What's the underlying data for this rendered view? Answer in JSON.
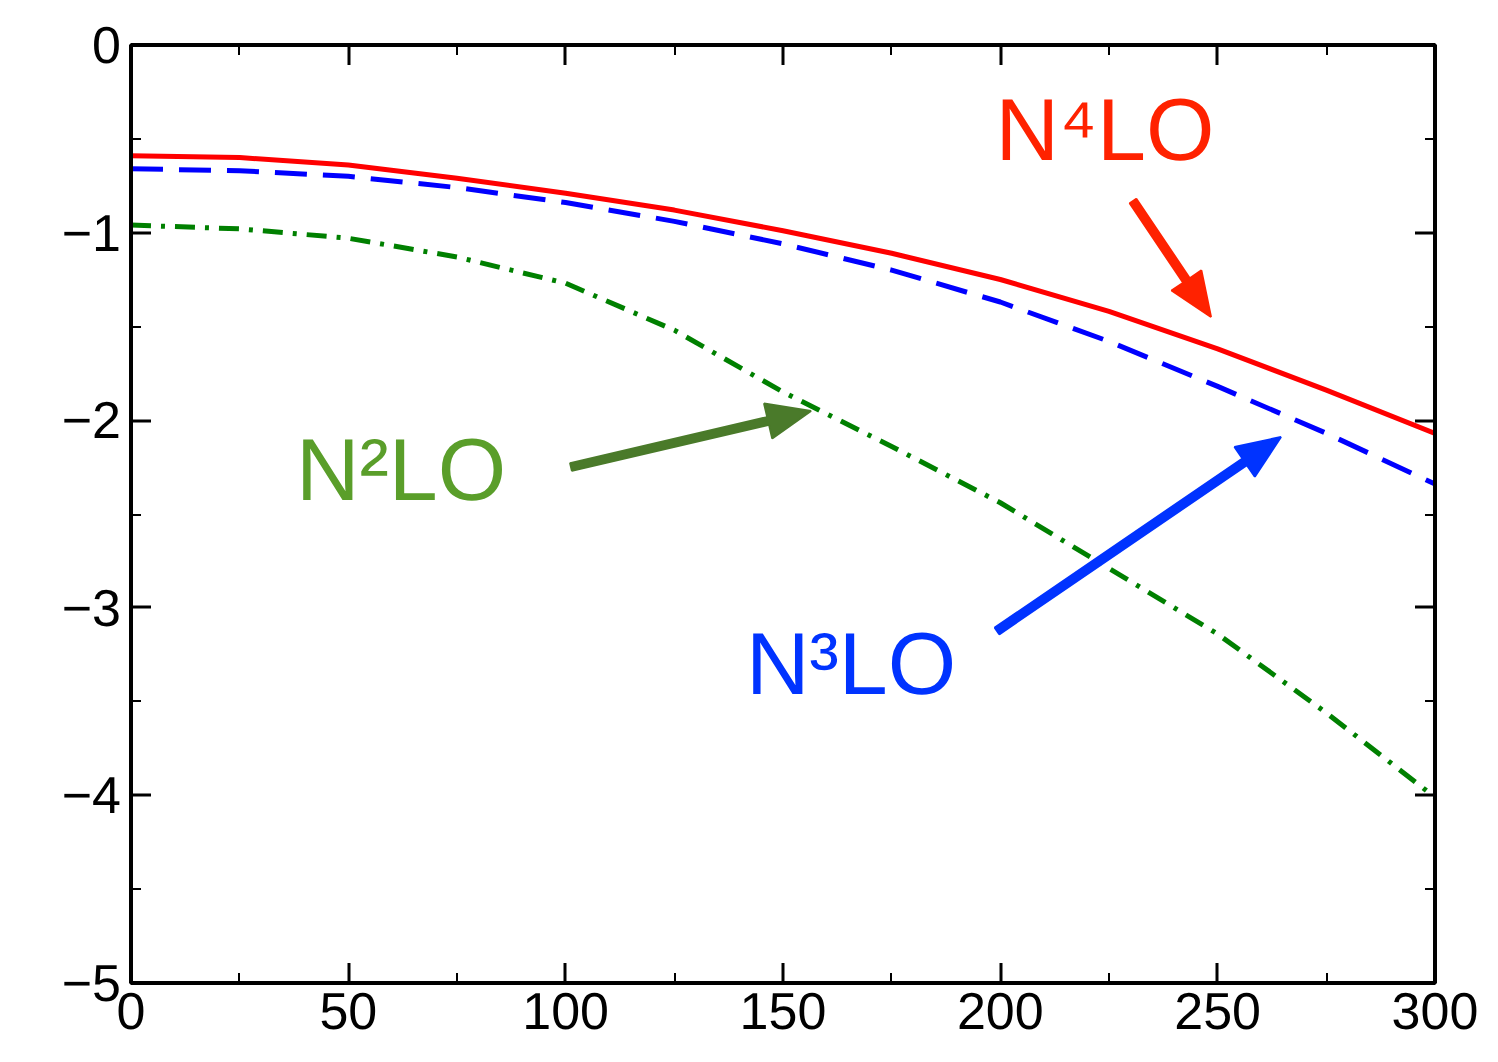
{
  "chart_data": {
    "type": "line",
    "x": [
      0,
      25,
      50,
      75,
      100,
      125,
      150,
      175,
      200,
      225,
      250,
      275,
      300
    ],
    "series": [
      {
        "color": "#ff0000",
        "line_style": "solid",
        "values": [
          -0.59,
          -0.6,
          -0.64,
          -0.71,
          -0.79,
          -0.88,
          -0.99,
          -1.11,
          -1.25,
          -1.42,
          -1.62,
          -1.84,
          -2.07
        ]
      },
      {
        "color": "#0000ff",
        "line_style": "dashed",
        "values": [
          -0.66,
          -0.67,
          -0.7,
          -0.76,
          -0.84,
          -0.94,
          -1.06,
          -1.2,
          -1.37,
          -1.58,
          -1.82,
          -2.07,
          -2.34
        ]
      },
      {
        "color": "#008000",
        "line_style": "dashdot",
        "values": [
          -0.96,
          -0.98,
          -1.03,
          -1.13,
          -1.27,
          -1.52,
          -1.85,
          -2.14,
          -2.44,
          -2.79,
          -3.14,
          -3.56,
          -4.01
        ]
      }
    ],
    "annotations": [
      "N⁴LO",
      "N³LO",
      "N²LO"
    ],
    "xlim": [
      0,
      300
    ],
    "ylim": [
      -5,
      0
    ],
    "xticks": [
      0,
      50,
      100,
      150,
      200,
      250,
      300
    ],
    "yticks": [
      -5,
      -4,
      -3,
      -2,
      -1,
      0
    ],
    "grid": false,
    "marker": "none"
  }
}
